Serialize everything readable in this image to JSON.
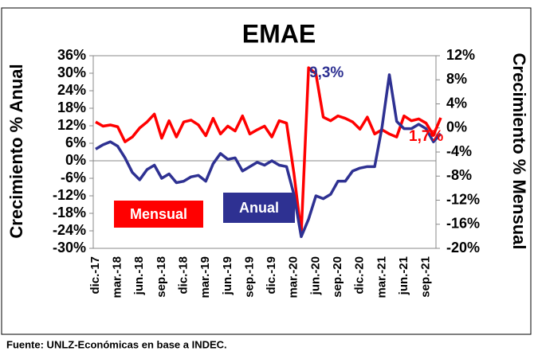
{
  "chart_data": {
    "type": "line",
    "title": "EMAE",
    "y_label": "Crecimiento % Anual",
    "y2_label": "Crecimiento % Mensual",
    "source": "Fuente: UNLZ-Económicas en base a INDEC.",
    "annotations": [
      {
        "text": "9,3%",
        "color": "#2e3192"
      },
      {
        "text": "1,7%",
        "color": "#ff0000"
      }
    ],
    "categories": [
      "dic.-17",
      null,
      null,
      "mar.-18",
      null,
      null,
      "jun.-18",
      null,
      null,
      "sep.-18",
      null,
      null,
      "dic.-18",
      null,
      null,
      "mar.-19",
      null,
      null,
      "jun.-19",
      null,
      null,
      "sep.-19",
      null,
      null,
      "dic.-19",
      null,
      null,
      "mar.-20",
      null,
      null,
      "jun.-20",
      null,
      null,
      "sep.-20",
      null,
      null,
      "dic.-20",
      null,
      null,
      "mar.-21",
      null,
      null,
      "jun.-21",
      null,
      null,
      "sep.-21",
      null,
      null
    ],
    "series": [
      {
        "name": "Mensual",
        "color": "#ff0000",
        "axis": "y2",
        "values": [
          1,
          0.3,
          0.5,
          0.2,
          -2.3,
          -1.5,
          0,
          1,
          2.3,
          -1.7,
          1.2,
          -1.5,
          1,
          1.3,
          0.5,
          -1.3,
          1.6,
          -1,
          0.3,
          -0.5,
          2,
          -1,
          -0.3,
          0.3,
          -1.5,
          1.2,
          0.8,
          -7.5,
          -17.5,
          10,
          9,
          1.8,
          1.2,
          2,
          1.6,
          1,
          -0.2,
          1.8,
          -1,
          -0.3,
          -1,
          -1.5,
          2,
          1.2,
          1.5,
          0.8,
          -1.2,
          1.7
        ]
      },
      {
        "name": "Anual",
        "color": "#2e3192",
        "values": [
          4,
          5.5,
          6.5,
          5,
          1,
          -4,
          -6.5,
          -3,
          -1.5,
          -6,
          -4.5,
          -7.5,
          -7,
          -5.5,
          -5,
          -7,
          -1,
          2.5,
          0.5,
          1,
          -3.5,
          -2,
          -0.5,
          -1.5,
          0,
          -1.5,
          -2,
          -11.5,
          -26,
          -20,
          -12,
          -13,
          -11.5,
          -7,
          -7,
          -3.5,
          -2.5,
          -2,
          -2,
          11.5,
          29.5,
          13.5,
          11,
          11,
          12.5,
          11,
          6.5,
          9.3
        ]
      }
    ],
    "ylim": [
      -30,
      36
    ],
    "yticks": [
      {
        "value": 36,
        "label": "36%"
      },
      {
        "value": 30,
        "label": "30%"
      },
      {
        "value": 24,
        "label": "24%"
      },
      {
        "value": 18,
        "label": "18%"
      },
      {
        "value": 12,
        "label": "12%"
      },
      {
        "value": 6,
        "label": "6%"
      },
      {
        "value": 0,
        "label": "0%"
      },
      {
        "value": -6,
        "label": "-6%"
      },
      {
        "value": -12,
        "label": "-12%"
      },
      {
        "value": -18,
        "label": "-18%"
      },
      {
        "value": -24,
        "label": "-24%"
      },
      {
        "value": -30,
        "label": "-30%"
      }
    ],
    "y2lim": [
      -20,
      12
    ],
    "y2ticks": [
      {
        "value": 12,
        "label": "12%"
      },
      {
        "value": 8,
        "label": "8%"
      },
      {
        "value": 4,
        "label": "4%"
      },
      {
        "value": 0,
        "label": "0%"
      },
      {
        "value": -4,
        "label": "-4%"
      },
      {
        "value": -8,
        "label": "-8%"
      },
      {
        "value": -12,
        "label": "-12%"
      },
      {
        "value": -16,
        "label": "-16%"
      },
      {
        "value": -20,
        "label": "-20%"
      }
    ]
  }
}
